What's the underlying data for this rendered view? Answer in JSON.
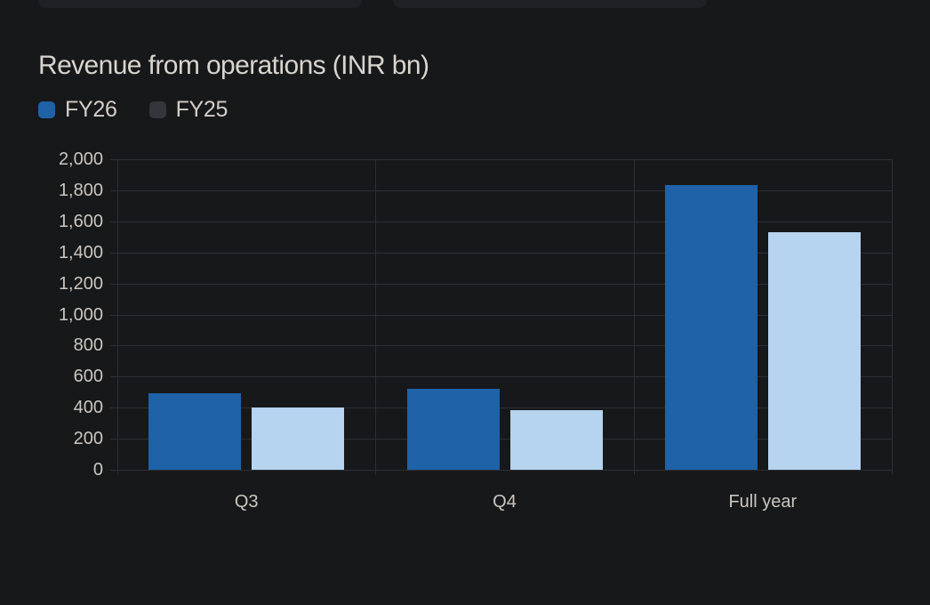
{
  "page": {
    "background_color": "#17181a",
    "top_partial_cards": [
      {
        "name": "left-partial-card"
      },
      {
        "name": "right-partial-card"
      }
    ]
  },
  "chart_data": {
    "type": "bar",
    "title": "Revenue from operations (INR bn)",
    "categories": [
      "Q3",
      "Q4",
      "Full year"
    ],
    "series": [
      {
        "name": "FY26",
        "bar_color": "#1f62a8",
        "swatch_color": "#1f62a8",
        "values": [
          495,
          520,
          1835
        ]
      },
      {
        "name": "FY25",
        "bar_color": "#b6d3ef",
        "swatch_color": "#33373c",
        "values": [
          400,
          385,
          1530
        ]
      }
    ],
    "ylim": [
      0,
      2000
    ],
    "ytick_step": 200,
    "ytick_labels_top_to_bottom": [
      "2,000",
      "1,800",
      "1,600",
      "1,400",
      "1,200",
      "1,000",
      "800",
      "600",
      "400",
      "200",
      "0"
    ],
    "xlabel": "",
    "ylabel": "",
    "grid": true,
    "legend_position": "top-left",
    "style": {
      "grid_color": "#2d2f33",
      "tick_text_color": "#cbc7c1",
      "title_color": "#d8d4ce",
      "legend_text_color": "#d2cec8"
    }
  }
}
